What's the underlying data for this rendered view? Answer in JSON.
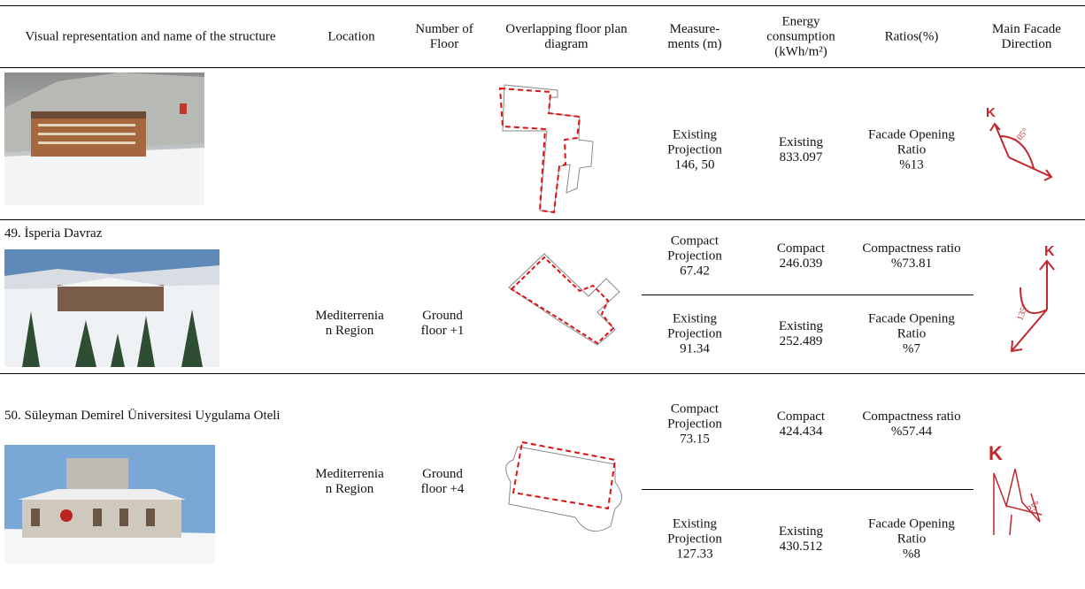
{
  "table": {
    "headers": [
      "Visual representation and name of the structure",
      "Location",
      "Number of Floor",
      "Overlapping floor plan diagram",
      "Measure-ments (m)",
      "Energy consumption (kWh/m²)",
      "Ratios(%)",
      "Main Facade Direction"
    ],
    "rows": [
      {
        "existing": {
          "measurement": {
            "label": "Existing Projection",
            "value": "146, 50"
          },
          "energy": {
            "label": "Existing",
            "value": "833.097"
          },
          "ratio": {
            "label": "Facade Opening Ratio",
            "value": "%13"
          }
        },
        "direction": {
          "north": "K",
          "angle": "105°"
        }
      },
      {
        "name": "49. İsperia Davraz",
        "location": "Mediterrenia\nn Region",
        "floors": "Ground\nfloor +1",
        "compact": {
          "measurement": {
            "label": "Compact Projection",
            "value": "67.42"
          },
          "energy": {
            "label": "Compact",
            "value": "246.039"
          },
          "ratio": {
            "label": "Compactness ratio",
            "value": "%73.81"
          }
        },
        "existing": {
          "measurement": {
            "label": "Existing Projection",
            "value": "91.34"
          },
          "energy": {
            "label": "Existing",
            "value": "252.489"
          },
          "ratio": {
            "label": "Facade Opening Ratio",
            "value": "%7"
          }
        },
        "direction": {
          "north": "K",
          "angle": "135°"
        }
      },
      {
        "name": "50. Süleyman Demirel Üniversitesi Uygulama Oteli",
        "location": "Mediterrenia\nn Region",
        "floors": "Ground\nfloor +4",
        "compact": {
          "measurement": {
            "label": "Compact Projection",
            "value": "73.15"
          },
          "energy": {
            "label": "Compact",
            "value": "424.434"
          },
          "ratio": {
            "label": "Compactness ratio",
            "value": "%57.44"
          }
        },
        "existing": {
          "measurement": {
            "label": "Existing Projection",
            "value": "127.33"
          },
          "energy": {
            "label": "Existing",
            "value": "430.512"
          },
          "ratio": {
            "label": "Facade Opening Ratio",
            "value": "%8"
          }
        },
        "direction": {
          "north": "K",
          "angle": "25°"
        }
      }
    ]
  }
}
